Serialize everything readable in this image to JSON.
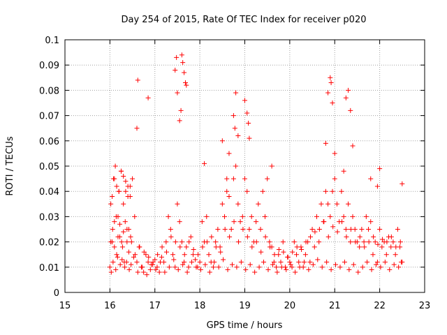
{
  "chart_data": {
    "type": "scatter",
    "title": "Day 254 of 2015, Rate Of TEC Index for receiver p020",
    "xlabel": "GPS time / hours",
    "ylabel": "ROTI / TECUs",
    "xlim": [
      15,
      23
    ],
    "ylim": [
      0,
      0.1
    ],
    "x_ticks": [
      "15",
      "16",
      "17",
      "18",
      "19",
      "20",
      "21",
      "22",
      "23"
    ],
    "y_ticks": [
      "0",
      "0.01",
      "0.02",
      "0.03",
      "0.04",
      "0.05",
      "0.06",
      "0.07",
      "0.08",
      "0.09",
      "0.1"
    ],
    "grid": true,
    "legend": "none",
    "marker": "+",
    "color": "#ff0000",
    "series": [
      {
        "x": [
          16.0,
          16.02,
          16.05,
          16.08,
          16.1,
          16.12,
          16.15,
          16.18,
          16.2,
          16.22,
          16.25,
          16.28,
          16.3,
          16.32,
          16.35,
          16.38,
          16.4,
          16.42,
          16.45,
          16.48,
          16.5,
          16.55,
          16.6,
          16.65,
          16.7,
          16.75,
          16.8,
          16.85,
          16.9,
          16.95,
          17.0,
          17.05,
          17.1,
          17.15,
          17.2,
          17.25,
          17.3,
          17.35,
          17.4,
          17.45,
          17.5,
          17.55,
          17.6,
          17.65,
          17.7,
          17.75,
          17.8,
          17.85,
          17.9,
          17.95,
          18.0,
          18.05,
          18.1,
          18.15,
          18.2,
          18.25,
          18.3,
          18.35,
          18.4,
          18.45,
          18.5,
          18.55,
          18.6,
          18.65,
          18.7,
          18.75,
          18.8,
          18.85,
          18.9,
          18.95,
          19.0,
          19.05,
          19.1,
          19.15,
          19.2,
          19.25,
          19.3,
          19.35,
          19.4,
          19.45,
          19.5,
          19.55,
          19.6,
          19.65,
          19.7,
          19.75,
          19.8,
          19.85,
          19.9,
          19.95,
          20.0,
          20.05,
          20.1,
          20.15,
          20.2,
          20.25,
          20.3,
          20.35,
          20.4,
          20.45,
          20.5,
          20.55,
          20.6,
          20.65,
          20.7,
          20.75,
          20.8,
          20.85,
          20.9,
          20.95,
          21.0,
          21.05,
          21.1,
          21.15,
          21.2,
          21.25,
          21.3,
          21.35,
          21.4,
          21.45,
          21.5,
          21.55,
          21.6,
          21.65,
          21.7,
          21.75,
          21.8,
          21.85,
          21.9,
          21.95,
          22.0,
          22.05,
          22.1,
          22.15,
          22.2,
          22.25,
          22.3,
          22.35,
          22.4,
          22.45,
          22.5,
          16.03,
          16.07,
          16.13,
          16.17,
          16.23,
          16.27,
          16.33,
          16.37,
          16.43,
          16.47,
          16.53,
          16.62,
          16.72,
          16.82,
          16.92,
          17.02,
          17.12,
          17.22,
          17.32,
          17.42,
          17.52,
          17.62,
          17.72,
          17.82,
          17.92,
          18.02,
          18.12,
          18.22,
          18.32,
          18.42,
          18.52,
          18.62,
          18.72,
          18.82,
          18.92,
          19.02,
          19.12,
          19.22,
          19.32,
          19.42,
          19.52,
          19.62,
          19.72,
          19.82,
          19.92,
          20.02,
          20.12,
          20.22,
          20.32,
          20.42,
          20.52,
          20.62,
          20.72,
          20.82,
          20.92,
          21.02,
          21.12,
          21.22,
          21.32,
          21.42,
          21.52,
          21.62,
          21.72,
          21.82,
          21.92,
          22.02,
          22.12,
          22.22,
          22.32,
          22.42,
          22.48,
          16.02,
          16.06,
          16.1,
          16.14,
          16.18,
          16.22,
          16.26,
          16.3,
          16.34,
          16.38,
          16.42,
          16.46,
          16.56,
          16.66,
          16.76,
          16.86,
          16.96,
          17.06,
          17.16,
          17.26,
          17.36,
          17.46,
          17.56,
          17.66,
          17.76,
          17.86,
          17.96,
          18.06,
          18.16,
          18.26,
          18.36,
          18.46,
          18.56,
          18.66,
          18.76,
          18.86,
          18.96,
          19.06,
          19.16,
          19.26,
          19.36,
          19.46,
          19.56,
          19.66,
          19.76,
          19.86,
          19.96,
          20.06,
          20.16,
          20.26,
          20.36,
          20.46,
          20.56,
          20.66,
          20.76,
          20.86,
          20.96,
          21.06,
          21.16,
          21.26,
          21.36,
          21.46,
          21.56,
          21.66,
          21.76,
          21.86,
          21.96,
          22.06,
          22.16,
          22.26,
          22.36,
          22.46,
          16.05,
          16.1,
          16.15,
          16.2,
          16.25,
          16.3,
          16.35,
          16.4,
          16.45,
          16.6,
          16.62,
          16.85,
          17.45,
          17.48,
          17.5,
          17.55,
          17.6,
          17.62,
          17.65,
          17.68,
          17.7,
          17.58,
          18.1,
          18.5,
          18.6,
          18.65,
          18.75,
          18.78,
          18.8,
          18.85,
          19.0,
          19.05,
          19.08,
          19.1,
          19.6,
          20.8,
          20.85,
          20.9,
          20.92,
          20.95,
          21.0,
          21.2,
          21.25,
          21.3,
          21.35,
          21.4,
          21.8,
          21.95,
          22.0,
          22.5
        ],
        "y": [
          0.01,
          0.035,
          0.02,
          0.045,
          0.028,
          0.05,
          0.015,
          0.03,
          0.04,
          0.022,
          0.048,
          0.018,
          0.035,
          0.012,
          0.04,
          0.025,
          0.042,
          0.016,
          0.038,
          0.02,
          0.045,
          0.03,
          0.012,
          0.018,
          0.01,
          0.008,
          0.015,
          0.012,
          0.009,
          0.011,
          0.013,
          0.01,
          0.008,
          0.014,
          0.012,
          0.02,
          0.03,
          0.025,
          0.015,
          0.01,
          0.035,
          0.028,
          0.02,
          0.012,
          0.018,
          0.01,
          0.022,
          0.015,
          0.013,
          0.01,
          0.012,
          0.028,
          0.02,
          0.03,
          0.015,
          0.012,
          0.01,
          0.02,
          0.025,
          0.018,
          0.035,
          0.03,
          0.04,
          0.038,
          0.025,
          0.045,
          0.05,
          0.035,
          0.028,
          0.03,
          0.045,
          0.04,
          0.025,
          0.03,
          0.02,
          0.028,
          0.035,
          0.025,
          0.04,
          0.03,
          0.045,
          0.02,
          0.018,
          0.012,
          0.01,
          0.015,
          0.012,
          0.02,
          0.01,
          0.014,
          0.012,
          0.01,
          0.02,
          0.015,
          0.012,
          0.018,
          0.01,
          0.015,
          0.02,
          0.012,
          0.025,
          0.018,
          0.03,
          0.02,
          0.035,
          0.028,
          0.04,
          0.035,
          0.03,
          0.04,
          0.045,
          0.035,
          0.028,
          0.04,
          0.03,
          0.025,
          0.035,
          0.02,
          0.03,
          0.025,
          0.02,
          0.018,
          0.025,
          0.02,
          0.03,
          0.025,
          0.028,
          0.015,
          0.02,
          0.012,
          0.025,
          0.018,
          0.02,
          0.015,
          0.022,
          0.018,
          0.02,
          0.015,
          0.025,
          0.018,
          0.012,
          0.008,
          0.012,
          0.009,
          0.014,
          0.011,
          0.013,
          0.01,
          0.012,
          0.009,
          0.011,
          0.014,
          0.008,
          0.01,
          0.007,
          0.011,
          0.009,
          0.012,
          0.008,
          0.01,
          0.013,
          0.009,
          0.011,
          0.008,
          0.012,
          0.01,
          0.009,
          0.011,
          0.008,
          0.012,
          0.01,
          0.013,
          0.009,
          0.011,
          0.01,
          0.012,
          0.009,
          0.011,
          0.008,
          0.01,
          0.012,
          0.009,
          0.011,
          0.008,
          0.01,
          0.009,
          0.011,
          0.008,
          0.01,
          0.012,
          0.009,
          0.011,
          0.013,
          0.01,
          0.012,
          0.009,
          0.011,
          0.01,
          0.012,
          0.009,
          0.011,
          0.008,
          0.01,
          0.012,
          0.009,
          0.011,
          0.01,
          0.012,
          0.009,
          0.011,
          0.01,
          0.012,
          0.02,
          0.025,
          0.018,
          0.03,
          0.022,
          0.027,
          0.02,
          0.024,
          0.028,
          0.02,
          0.025,
          0.022,
          0.015,
          0.018,
          0.016,
          0.014,
          0.012,
          0.015,
          0.018,
          0.016,
          0.022,
          0.02,
          0.018,
          0.015,
          0.02,
          0.017,
          0.015,
          0.018,
          0.02,
          0.022,
          0.018,
          0.016,
          0.025,
          0.022,
          0.028,
          0.02,
          0.025,
          0.022,
          0.018,
          0.02,
          0.016,
          0.022,
          0.018,
          0.015,
          0.017,
          0.016,
          0.014,
          0.016,
          0.018,
          0.017,
          0.02,
          0.022,
          0.024,
          0.025,
          0.028,
          0.022,
          0.026,
          0.024,
          0.028,
          0.022,
          0.025,
          0.02,
          0.022,
          0.018,
          0.02,
          0.022,
          0.019,
          0.021,
          0.02,
          0.022,
          0.018,
          0.02,
          0.038,
          0.045,
          0.042,
          0.04,
          0.048,
          0.046,
          0.044,
          0.038,
          0.042,
          0.065,
          0.084,
          0.077,
          0.088,
          0.093,
          0.079,
          0.068,
          0.094,
          0.091,
          0.087,
          0.083,
          0.082,
          0.072,
          0.051,
          0.06,
          0.045,
          0.055,
          0.07,
          0.065,
          0.079,
          0.062,
          0.076,
          0.071,
          0.067,
          0.061,
          0.05,
          0.059,
          0.079,
          0.085,
          0.083,
          0.075,
          0.055,
          0.048,
          0.077,
          0.08,
          0.072,
          0.058,
          0.045,
          0.042,
          0.049,
          0.043
        ]
      }
    ]
  }
}
